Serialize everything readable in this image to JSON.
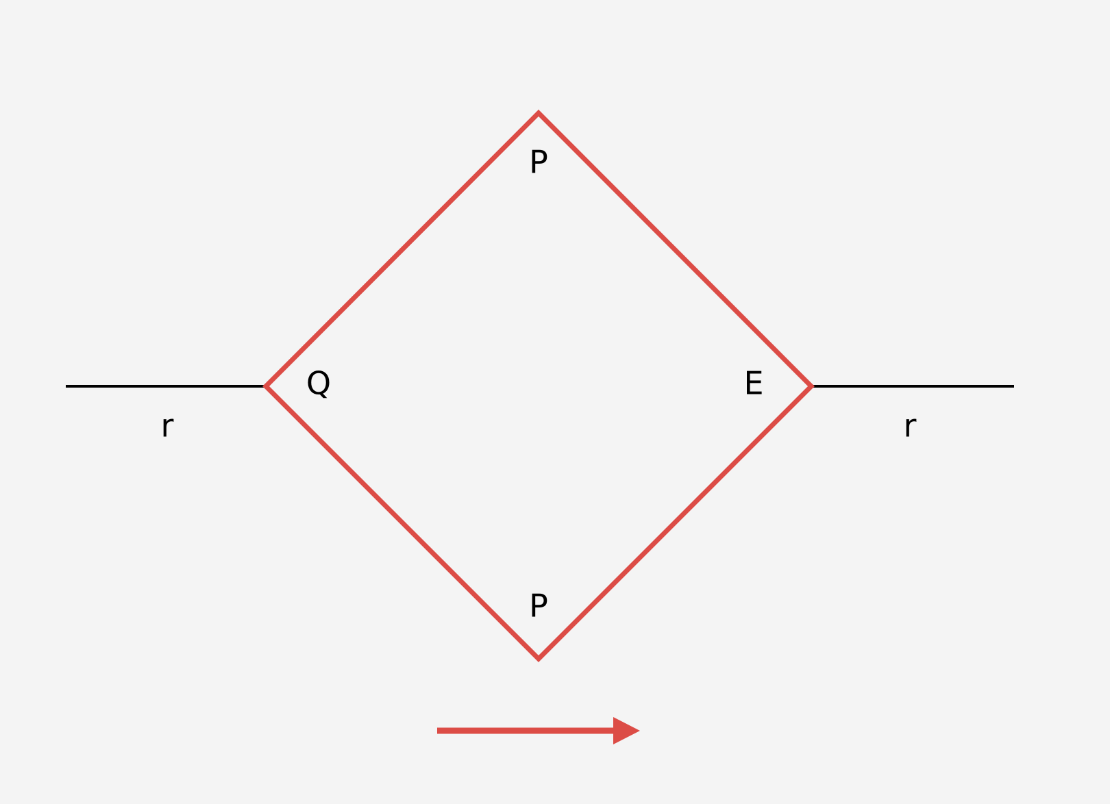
{
  "colors": {
    "background": "#f4f4f4",
    "loop_stroke": "#dc4c46",
    "line_stroke": "#000000",
    "arrow": "#dc4c46"
  },
  "labels": {
    "left_vertex": "Q",
    "right_vertex": "E",
    "top_edge": "P",
    "bottom_edge": "P",
    "left_line": "r",
    "right_line": "r"
  }
}
